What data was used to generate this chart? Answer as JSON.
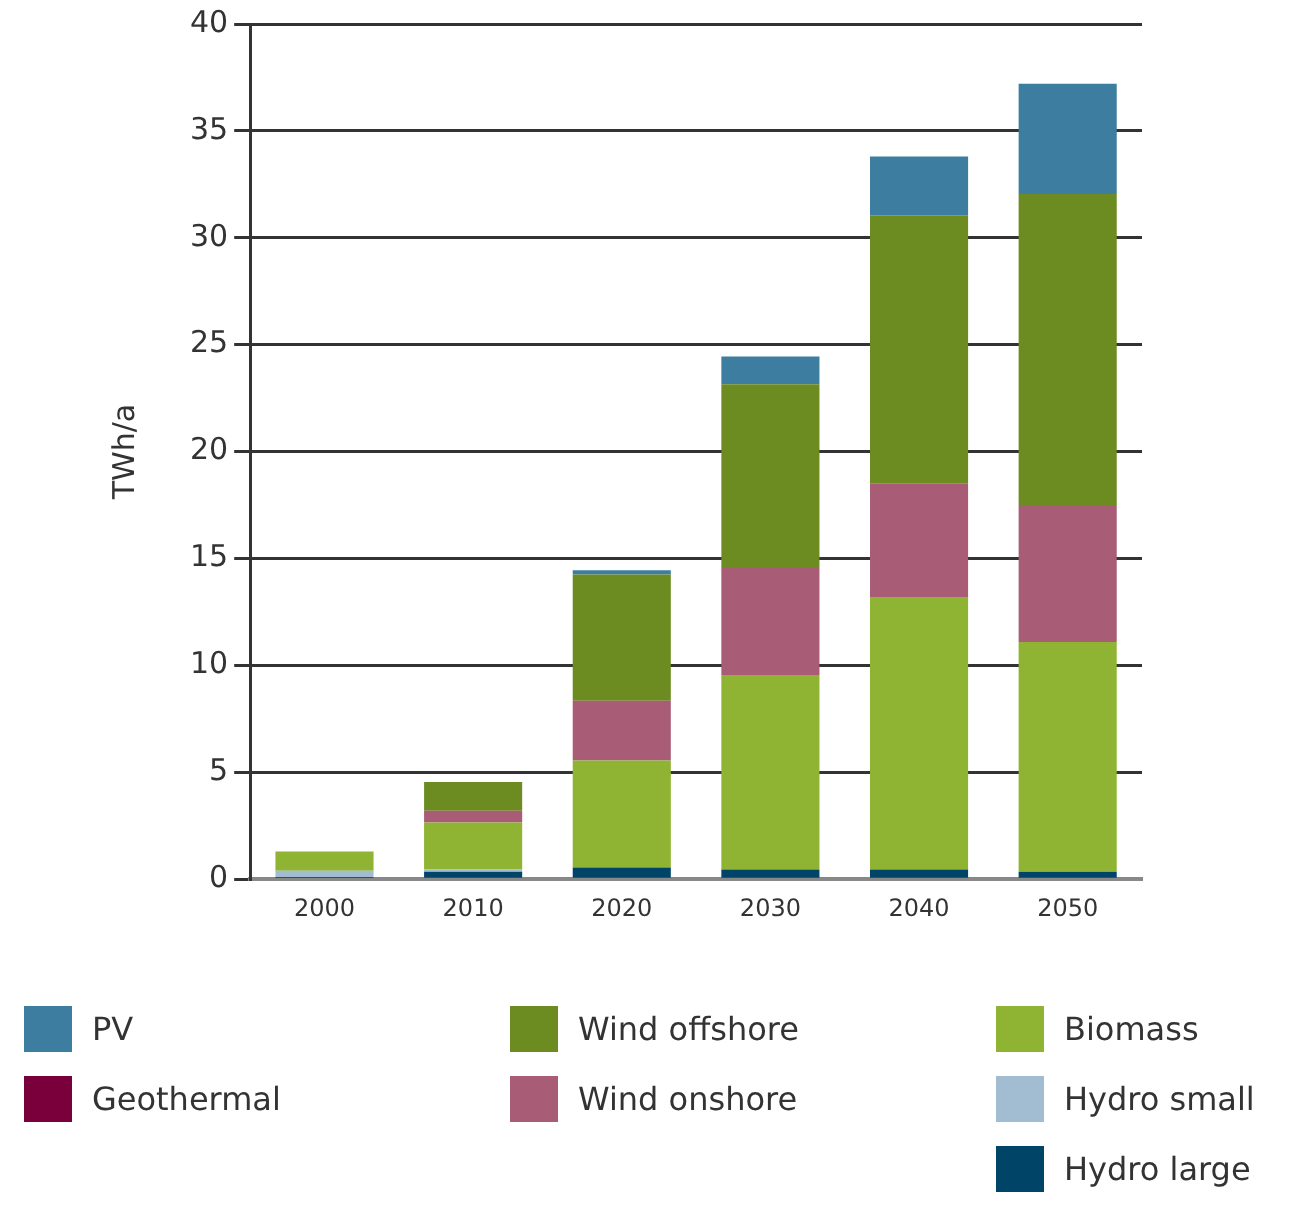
{
  "chart_data": {
    "type": "bar",
    "stacked": true,
    "ylabel": "TWh/a",
    "categories": [
      "2000",
      "2010",
      "2020",
      "2030",
      "2040",
      "2050"
    ],
    "ylim": [
      0,
      40
    ],
    "yticks": [
      0,
      5,
      10,
      15,
      20,
      25,
      30,
      35,
      40
    ],
    "grid": "y",
    "legend": "bottom",
    "series": [
      {
        "name": "Hydro large",
        "color": "#004468",
        "values": [
          0.1,
          0.35,
          0.55,
          0.45,
          0.45,
          0.35
        ]
      },
      {
        "name": "Hydro small",
        "color": "#a2bcd2",
        "values": [
          0.3,
          0.1,
          0,
          0,
          0,
          0
        ]
      },
      {
        "name": "Geothermal",
        "color": "#7a003c",
        "values": [
          0,
          0,
          0,
          0,
          0,
          0
        ]
      },
      {
        "name": "Biomass",
        "color": "#8fb332",
        "values": [
          0.9,
          2.2,
          5.0,
          9.1,
          12.75,
          10.75
        ]
      },
      {
        "name": "Wind onshore",
        "color": "#a85c75",
        "values": [
          0,
          0.55,
          2.8,
          5.0,
          5.3,
          6.35
        ]
      },
      {
        "name": "Wind offshore",
        "color": "#6c8c22",
        "values": [
          0,
          1.35,
          5.9,
          8.6,
          12.55,
          14.6
        ]
      },
      {
        "name": "PV",
        "color": "#3d7ea0",
        "values": [
          0,
          0,
          0.2,
          1.3,
          2.75,
          5.15
        ]
      }
    ]
  }
}
